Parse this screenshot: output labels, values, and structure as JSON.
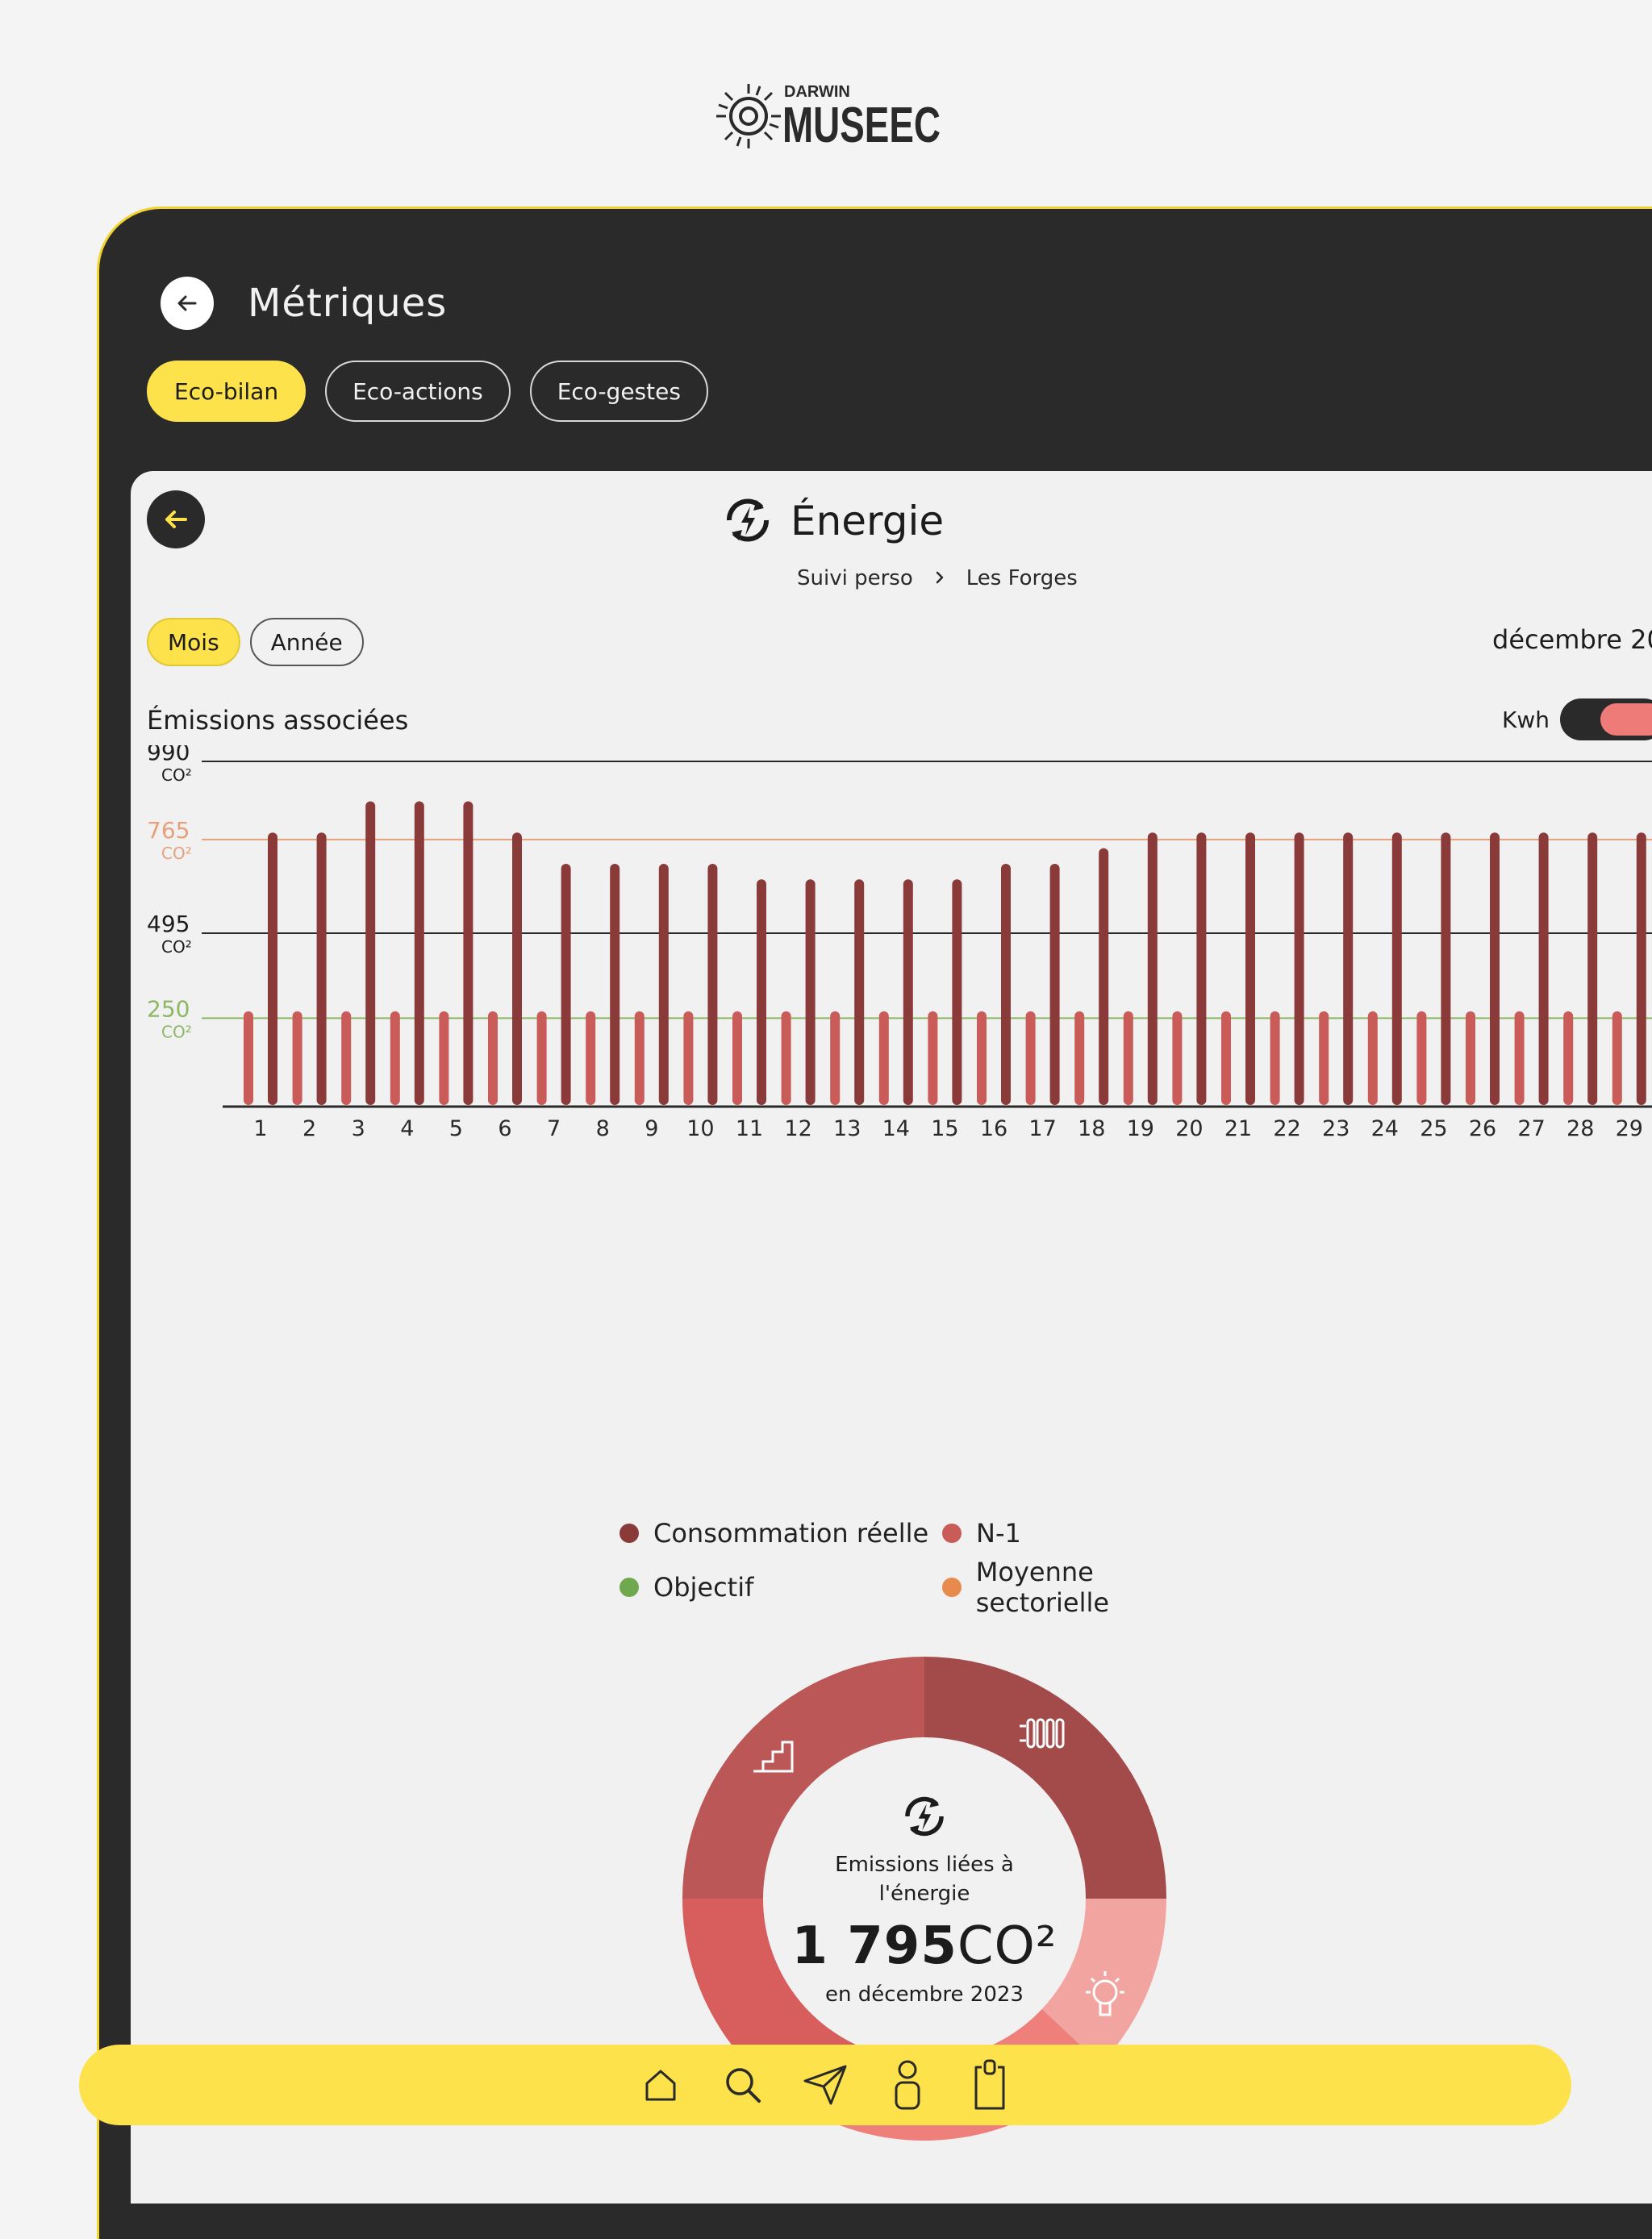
{
  "brand": {
    "logo_small": "DARWIN",
    "logo_main": "MUSEEC"
  },
  "header": {
    "title": "Métriques"
  },
  "tabs": [
    {
      "label": "Eco-bilan",
      "active": true
    },
    {
      "label": "Eco-actions",
      "active": false
    },
    {
      "label": "Eco-gestes",
      "active": false
    }
  ],
  "section": {
    "title": "Énergie",
    "breadcrumb": [
      "Suivi perso",
      "Les Forges"
    ],
    "periods": [
      {
        "label": "Mois",
        "active": true
      },
      {
        "label": "Année",
        "active": false
      }
    ],
    "month_label": "décembre 20",
    "emissions_title": "Émissions associées",
    "unit_toggle_label": "Kwh",
    "unit_toggle_on": true
  },
  "colors": {
    "accent": "#fde24b",
    "dark": "#2a2a2a",
    "consommation": "#8b3a3a",
    "n1": "#c95b59",
    "objectif": "#8cb864",
    "moyenne": "#e8a07a"
  },
  "chart_data": {
    "type": "bar",
    "categories": [
      "1",
      "2",
      "3",
      "4",
      "5",
      "6",
      "7",
      "8",
      "9",
      "10",
      "11",
      "12",
      "13",
      "14",
      "15",
      "16",
      "17",
      "18",
      "19",
      "20",
      "21",
      "22",
      "23",
      "24",
      "25",
      "26",
      "27",
      "28",
      "29"
    ],
    "series": [
      {
        "name": "Consommation réelle",
        "values": [
          785,
          785,
          875,
          875,
          875,
          785,
          695,
          695,
          695,
          695,
          650,
          650,
          650,
          650,
          650,
          695,
          695,
          740,
          785,
          785,
          785,
          785,
          785,
          785,
          785,
          785,
          785,
          785,
          785
        ]
      },
      {
        "name": "N-1",
        "values": [
          270,
          270,
          270,
          270,
          270,
          270,
          270,
          270,
          270,
          270,
          270,
          270,
          270,
          270,
          270,
          270,
          270,
          270,
          270,
          270,
          270,
          270,
          270,
          270,
          270,
          270,
          270,
          270,
          270
        ]
      }
    ],
    "reference_lines": [
      {
        "name": "Objectif",
        "value": 250
      },
      {
        "name": "Moyenne sectorielle",
        "value": 765
      }
    ],
    "y_ticks": [
      {
        "value": 990,
        "label": "990",
        "unit": "CO²"
      },
      {
        "value": 765,
        "label": "765",
        "unit": "CO²"
      },
      {
        "value": 495,
        "label": "495",
        "unit": "CO²"
      },
      {
        "value": 250,
        "label": "250",
        "unit": "CO²"
      }
    ],
    "ylim": [
      0,
      990
    ],
    "legend": [
      "Consommation réelle",
      "N-1",
      "Objectif",
      "Moyenne sectorielle"
    ]
  },
  "legend": {
    "consommation": "Consommation réelle",
    "n1": "N-1",
    "objectif": "Objectif",
    "moyenne": "Moyenne sectorielle"
  },
  "donut": {
    "label": "Emissions liées à l'énergie",
    "value": "1 795",
    "unit": "CO²",
    "period": "en décembre 2023",
    "segments": [
      {
        "name": "stairs-icon",
        "value": 25,
        "color": "#a34b4b"
      },
      {
        "name": "radiator-icon",
        "value": 12,
        "color": "#f2a5a0"
      },
      {
        "name": "lightbulb-icon",
        "value": 20,
        "color": "#ee7f7b"
      },
      {
        "name": "other",
        "value": 18,
        "color": "#d85e5e"
      },
      {
        "name": "other-2",
        "value": 25,
        "color": "#bb5757"
      }
    ]
  },
  "nav": [
    "home-icon",
    "search-icon",
    "send-icon",
    "profile-icon",
    "clipboard-icon"
  ]
}
